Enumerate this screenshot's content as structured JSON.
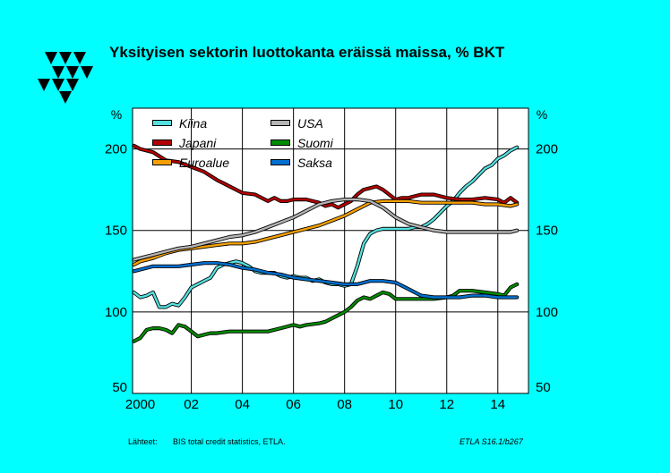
{
  "title": "Yksityisen sektorin luottokanta eräissä maissa, %  BKT",
  "source_label": "Lähteet:",
  "source_text": "BIS total credit statistics, ETLA.",
  "chart_code": "ETLA S16.1/b267",
  "colors": {
    "background": "#00ffff",
    "plot_bg": "#ffffff",
    "Kiina": "#55e0e0",
    "Japani": "#b40000",
    "Euroalue": "#f5a000",
    "USA": "#b4b4b4",
    "Suomi": "#008c00",
    "Saksa": "#0070d0"
  },
  "chart_data": {
    "type": "line",
    "title": "Yksityisen sektorin luottokanta eräissä maissa, %  BKT",
    "unit_left": "%",
    "unit_right": "%",
    "xlim": [
      1999.7,
      2015.2
    ],
    "ylim": [
      50,
      225
    ],
    "xticks": [
      2000,
      2002,
      2004,
      2006,
      2008,
      2010,
      2012,
      2014
    ],
    "xtick_labels": [
      "2000",
      "02",
      "04",
      "06",
      "08",
      "10",
      "12",
      "14"
    ],
    "yticks": [
      50,
      100,
      150,
      200
    ],
    "ytick_labels": [
      "50",
      "100",
      "150",
      "200"
    ],
    "grid": true,
    "legend_position": "top-left",
    "series": [
      {
        "name": "Kiina",
        "x": [
          1999.75,
          2000,
          2000.25,
          2000.5,
          2000.75,
          2001,
          2001.25,
          2001.5,
          2001.75,
          2002,
          2002.25,
          2002.5,
          2002.75,
          2003,
          2003.25,
          2003.5,
          2003.75,
          2004,
          2004.25,
          2004.5,
          2004.75,
          2005,
          2005.25,
          2005.5,
          2005.75,
          2006,
          2006.25,
          2006.5,
          2006.75,
          2007,
          2007.25,
          2007.5,
          2007.75,
          2008,
          2008.25,
          2008.5,
          2008.75,
          2009,
          2009.25,
          2009.5,
          2009.75,
          2010,
          2010.25,
          2010.5,
          2010.75,
          2011,
          2011.25,
          2011.5,
          2011.75,
          2012,
          2012.25,
          2012.5,
          2012.75,
          2013,
          2013.25,
          2013.5,
          2013.75,
          2014,
          2014.25,
          2014.5,
          2014.75
        ],
        "values": [
          112,
          109,
          110,
          112,
          103,
          103,
          105,
          104,
          109,
          115,
          117,
          119,
          121,
          127,
          129,
          130,
          131,
          130,
          128,
          125,
          124,
          124,
          124,
          122,
          121,
          122,
          121,
          121,
          119,
          120,
          118,
          117,
          117,
          116,
          117,
          128,
          142,
          148,
          150,
          151,
          151,
          151,
          151,
          151,
          152,
          152,
          154,
          157,
          161,
          165,
          168,
          173,
          177,
          180,
          184,
          188,
          190,
          194,
          196,
          199,
          201
        ]
      },
      {
        "name": "Japani",
        "x": [
          1999.75,
          2000,
          2000.5,
          2001,
          2001.5,
          2002,
          2002.5,
          2003,
          2003.5,
          2004,
          2004.5,
          2005,
          2005.25,
          2005.5,
          2005.75,
          2006,
          2006.5,
          2007,
          2007.25,
          2007.5,
          2007.75,
          2008,
          2008.25,
          2008.5,
          2008.75,
          2009,
          2009.25,
          2009.5,
          2009.75,
          2010,
          2010.25,
          2010.5,
          2010.75,
          2011,
          2011.5,
          2012,
          2012.5,
          2013,
          2013.5,
          2014,
          2014.25,
          2014.5,
          2014.75
        ],
        "values": [
          202,
          200,
          198,
          193,
          192,
          189,
          186,
          181,
          177,
          173,
          172,
          168,
          170,
          168,
          168,
          169,
          169,
          167,
          165,
          166,
          164,
          166,
          168,
          172,
          175,
          176,
          177,
          175,
          172,
          169,
          170,
          170,
          171,
          172,
          172,
          170,
          169,
          169,
          170,
          169,
          167,
          170,
          167
        ]
      },
      {
        "name": "Euroalue",
        "x": [
          1999.75,
          2000,
          2000.5,
          2001,
          2001.5,
          2002,
          2002.5,
          2003,
          2003.5,
          2004,
          2004.5,
          2005,
          2005.5,
          2006,
          2006.5,
          2007,
          2007.5,
          2008,
          2008.5,
          2009,
          2009.5,
          2010,
          2010.5,
          2011,
          2011.5,
          2012,
          2012.5,
          2013,
          2013.5,
          2014,
          2014.5,
          2014.75
        ],
        "values": [
          129,
          131,
          133,
          136,
          138,
          139,
          140,
          141,
          142,
          142,
          143,
          145,
          147,
          149,
          151,
          153,
          156,
          159,
          163,
          167,
          168,
          168,
          168,
          167,
          167,
          167,
          167,
          167,
          166,
          166,
          165,
          166
        ]
      },
      {
        "name": "USA",
        "x": [
          1999.75,
          2000,
          2000.5,
          2001,
          2001.5,
          2002,
          2002.5,
          2003,
          2003.5,
          2004,
          2004.5,
          2005,
          2005.5,
          2006,
          2006.5,
          2007,
          2007.5,
          2008,
          2008.5,
          2009,
          2009.5,
          2010,
          2010.5,
          2011,
          2011.5,
          2012,
          2012.5,
          2013,
          2013.5,
          2014,
          2014.5,
          2014.75
        ],
        "values": [
          132,
          133,
          135,
          137,
          139,
          140,
          142,
          144,
          146,
          147,
          149,
          152,
          155,
          158,
          162,
          166,
          168,
          169,
          169,
          168,
          164,
          158,
          154,
          152,
          150,
          149,
          149,
          149,
          149,
          149,
          149,
          150
        ]
      },
      {
        "name": "Suomi",
        "x": [
          1999.75,
          2000,
          2000.25,
          2000.5,
          2000.75,
          2001,
          2001.25,
          2001.5,
          2001.75,
          2002,
          2002.25,
          2002.5,
          2002.75,
          2003,
          2003.5,
          2004,
          2004.5,
          2005,
          2005.5,
          2006,
          2006.25,
          2006.5,
          2007,
          2007.25,
          2007.5,
          2007.75,
          2008,
          2008.25,
          2008.5,
          2008.75,
          2009,
          2009.25,
          2009.5,
          2009.75,
          2010,
          2010.25,
          2010.5,
          2011,
          2011.5,
          2012,
          2012.25,
          2012.5,
          2013,
          2013.5,
          2014,
          2014.25,
          2014.5,
          2014.75
        ],
        "values": [
          82,
          84,
          89,
          90,
          90,
          89,
          87,
          92,
          91,
          88,
          85,
          86,
          87,
          87,
          88,
          88,
          88,
          88,
          90,
          92,
          91,
          92,
          93,
          94,
          96,
          98,
          100,
          103,
          107,
          109,
          108,
          110,
          112,
          111,
          108,
          108,
          108,
          108,
          108,
          109,
          110,
          113,
          113,
          112,
          111,
          110,
          115,
          117
        ]
      },
      {
        "name": "Saksa",
        "x": [
          1999.75,
          2000,
          2000.5,
          2001,
          2001.5,
          2002,
          2002.5,
          2003,
          2003.5,
          2004,
          2004.5,
          2005,
          2005.5,
          2006,
          2006.5,
          2007,
          2007.5,
          2008,
          2008.5,
          2009,
          2009.5,
          2010,
          2010.5,
          2011,
          2011.5,
          2012,
          2012.5,
          2013,
          2013.5,
          2014,
          2014.5,
          2014.75
        ],
        "values": [
          125,
          126,
          128,
          128,
          128,
          129,
          130,
          130,
          129,
          127,
          126,
          124,
          123,
          121,
          120,
          119,
          118,
          117,
          117,
          119,
          119,
          118,
          114,
          110,
          109,
          109,
          109,
          110,
          110,
          109,
          109,
          109
        ]
      }
    ]
  }
}
